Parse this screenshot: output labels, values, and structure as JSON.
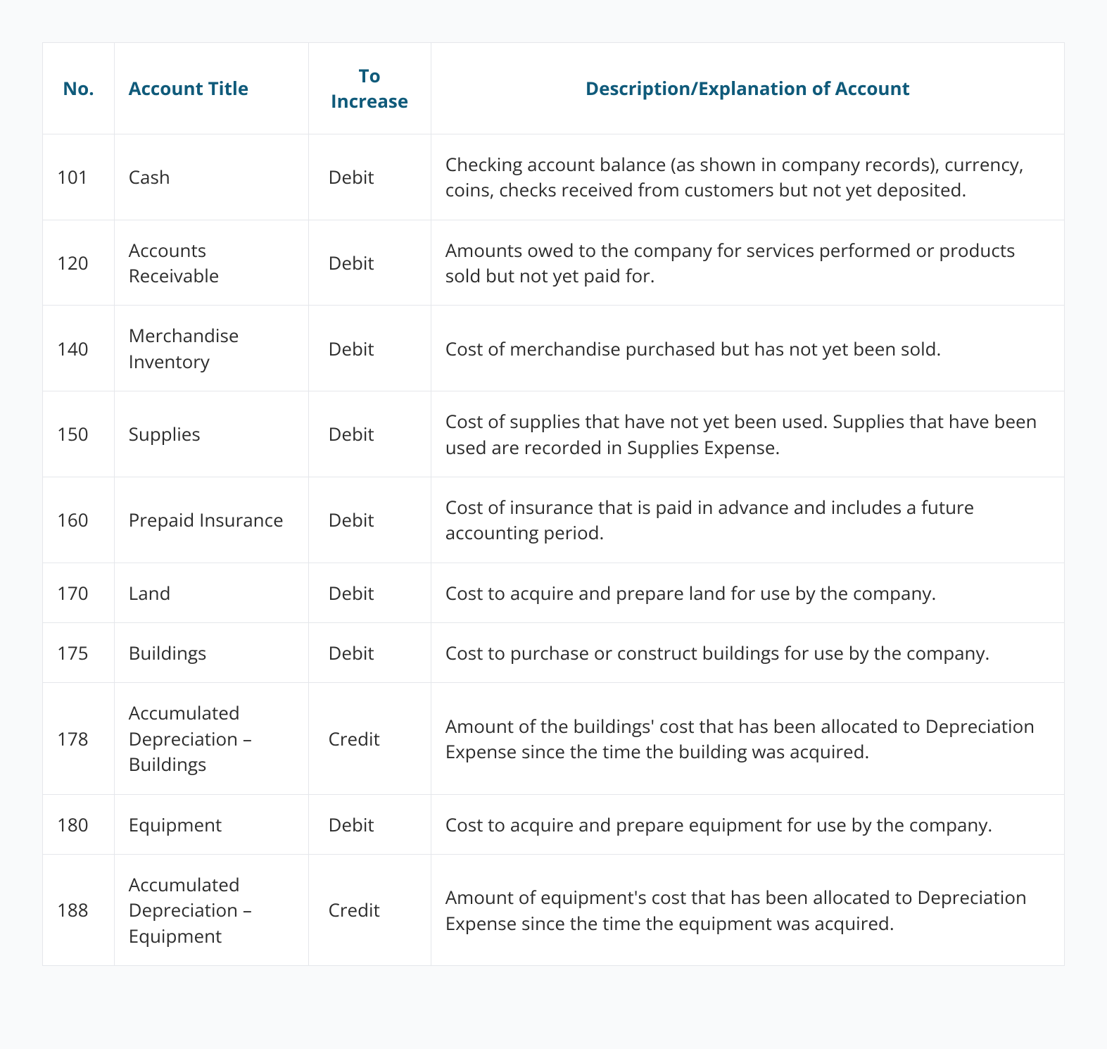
{
  "table": {
    "headers": {
      "no": "No.",
      "title": "Account Title",
      "increase": "To Increase",
      "desc": "Description/Explanation of Account"
    },
    "rows": [
      {
        "no": "101",
        "title": "Cash",
        "increase": "Debit",
        "desc": "Checking account balance (as shown in company records), currency, coins, checks received from customers but not yet deposited."
      },
      {
        "no": "120",
        "title": "Accounts Receivable",
        "increase": "Debit",
        "desc": "Amounts owed to the company for services performed or products sold but not yet paid for."
      },
      {
        "no": "140",
        "title": "Merchandise Inventory",
        "increase": "Debit",
        "desc": "Cost of merchandise purchased but has not yet been sold."
      },
      {
        "no": "150",
        "title": "Supplies",
        "increase": "Debit",
        "desc": "Cost of supplies that have not yet been used. Supplies that have been used are recorded in Supplies Expense."
      },
      {
        "no": "160",
        "title": "Prepaid Insurance",
        "increase": "Debit",
        "desc": "Cost of insurance that is paid in advance and includes a future accounting period."
      },
      {
        "no": "170",
        "title": "Land",
        "increase": "Debit",
        "desc": "Cost to acquire and prepare land for use by the company."
      },
      {
        "no": "175",
        "title": "Buildings",
        "increase": "Debit",
        "desc": "Cost to purchase or construct buildings for use by the company."
      },
      {
        "no": "178",
        "title": "Accumulated Depreciation – Buildings",
        "increase": "Credit",
        "desc": "Amount of the buildings' cost that has been allocated to Depreciation Expense since the time the building was acquired."
      },
      {
        "no": "180",
        "title": "Equipment",
        "increase": "Debit",
        "desc": "Cost to acquire and prepare equipment for use by the company."
      },
      {
        "no": "188",
        "title": "Accumulated Depreciation – Equipment",
        "increase": "Credit",
        "desc": "Amount of equipment's cost that has been allocated to Depreciation Expense since the time the equipment was acquired."
      }
    ]
  },
  "colors": {
    "header_text": "#0f5a7a",
    "body_text": "#2c2c2c",
    "border": "#e5e7eb",
    "background": "#f9fafb",
    "cell_bg": "#ffffff"
  }
}
